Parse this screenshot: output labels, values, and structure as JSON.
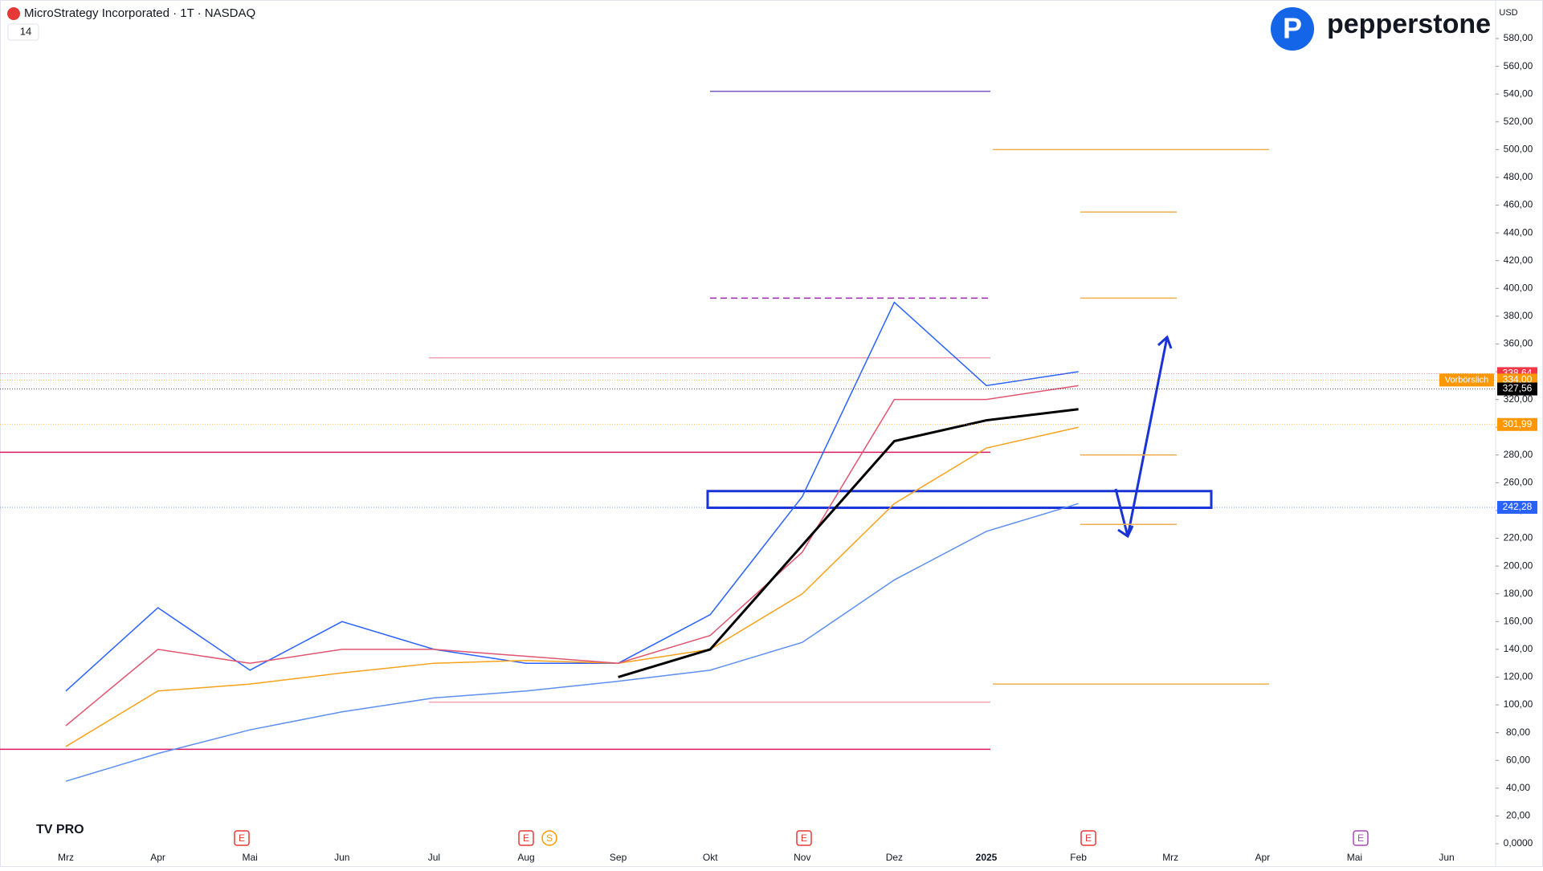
{
  "header": {
    "title": "MicroStrategy Incorporated · 1T · NASDAQ",
    "indicator_count": "14",
    "brand": "pepperstone",
    "currency": "USD",
    "session": "Vorbörslich"
  },
  "chart_data": {
    "type": "line",
    "categories": [
      "Mrz",
      "Apr",
      "Mai",
      "Jun",
      "Jul",
      "Aug",
      "Sep",
      "Okt",
      "Nov",
      "Dez",
      "2025",
      "Feb",
      "Mrz",
      "Apr",
      "Mai",
      "Jun"
    ],
    "series": [
      {
        "color": "#2962ff",
        "values": [
          110,
          170,
          125,
          160,
          140,
          130,
          130,
          165,
          250,
          390,
          330,
          340,
          null,
          null,
          null,
          null
        ]
      },
      {
        "color": "#f7a21b",
        "values": [
          70,
          110,
          115,
          123,
          130,
          132,
          130,
          140,
          180,
          245,
          285,
          300,
          null,
          null,
          null,
          null
        ]
      },
      {
        "color": "#e0566f",
        "values": [
          85,
          140,
          130,
          140,
          140,
          135,
          130,
          150,
          210,
          320,
          320,
          330,
          null,
          null,
          null,
          null
        ]
      },
      {
        "color": "#5b8ff0",
        "values": [
          45,
          65,
          82,
          95,
          105,
          110,
          117,
          125,
          145,
          190,
          225,
          245,
          null,
          null,
          null,
          null
        ]
      },
      {
        "color": "#000000",
        "values": [
          null,
          null,
          null,
          null,
          null,
          null,
          120,
          140,
          215,
          290,
          305,
          313,
          null,
          null,
          null,
          null
        ]
      }
    ],
    "levels": [
      {
        "value": 542,
        "color": "#7e57c2"
      },
      {
        "value": 500,
        "color": "#f0b050"
      },
      {
        "value": 455,
        "color": "#f0b050"
      },
      {
        "value": 393,
        "color": "#f0b050"
      },
      {
        "value": 393,
        "color": "#9c27b0"
      },
      {
        "value": 350,
        "color": "#f4a0b0"
      },
      {
        "value": 282,
        "color": "#d81b60"
      },
      {
        "value": 280,
        "color": "#f0b050"
      },
      {
        "value": 230,
        "color": "#f0b050"
      },
      {
        "value": 115,
        "color": "#f0b050"
      },
      {
        "value": 102,
        "color": "#f4a0b0"
      },
      {
        "value": 68,
        "color": "#d81b60"
      }
    ],
    "zone": [
      242,
      254
    ],
    "price_labels": [
      {
        "value": 338.64,
        "label": "338,64",
        "color": "#f23645"
      },
      {
        "value": 334,
        "label": "334,00",
        "color": "#ff9800"
      },
      {
        "value": 327.56,
        "label": "327,56",
        "color": "#000000"
      },
      {
        "value": 301.99,
        "label": "301,99",
        "color": "#ff9800"
      },
      {
        "value": 242.28,
        "label": "242,28",
        "color": "#2962ff"
      }
    ],
    "ylim": [
      0,
      580
    ],
    "yticks": [
      {
        "value": 0,
        "label": "0,0000"
      },
      {
        "value": 20,
        "label": "20,00"
      },
      {
        "value": 40,
        "label": "40,00"
      },
      {
        "value": 60,
        "label": "60,00"
      },
      {
        "value": 80,
        "label": "80,00"
      },
      {
        "value": 100,
        "label": "100,00"
      },
      {
        "value": 120,
        "label": "120,00"
      },
      {
        "value": 140,
        "label": "140,00"
      },
      {
        "value": 160,
        "label": "160,00"
      },
      {
        "value": 180,
        "label": "180,00"
      },
      {
        "value": 200,
        "label": "200,00"
      },
      {
        "value": 220,
        "label": "220,00"
      },
      {
        "value": 240,
        "label": "240,00"
      },
      {
        "value": 260,
        "label": "260,00"
      },
      {
        "value": 280,
        "label": "280,00"
      },
      {
        "value": 300,
        "label": "300,00"
      },
      {
        "value": 320,
        "label": "320,00"
      },
      {
        "value": 340,
        "label": "340,00"
      },
      {
        "value": 360,
        "label": "360,00"
      },
      {
        "value": 380,
        "label": "380,00"
      },
      {
        "value": 400,
        "label": "400,00"
      },
      {
        "value": 420,
        "label": "420,00"
      },
      {
        "value": 440,
        "label": "440,00"
      },
      {
        "value": 460,
        "label": "460,00"
      },
      {
        "value": 480,
        "label": "480,00"
      },
      {
        "value": 500,
        "label": "500,00"
      },
      {
        "value": 520,
        "label": "520,00"
      },
      {
        "value": 540,
        "label": "540,00"
      },
      {
        "value": 560,
        "label": "560,00"
      },
      {
        "value": 580,
        "label": "580,00"
      }
    ],
    "events": [
      "E",
      "E",
      "S",
      "E",
      "E",
      "E"
    ]
  }
}
